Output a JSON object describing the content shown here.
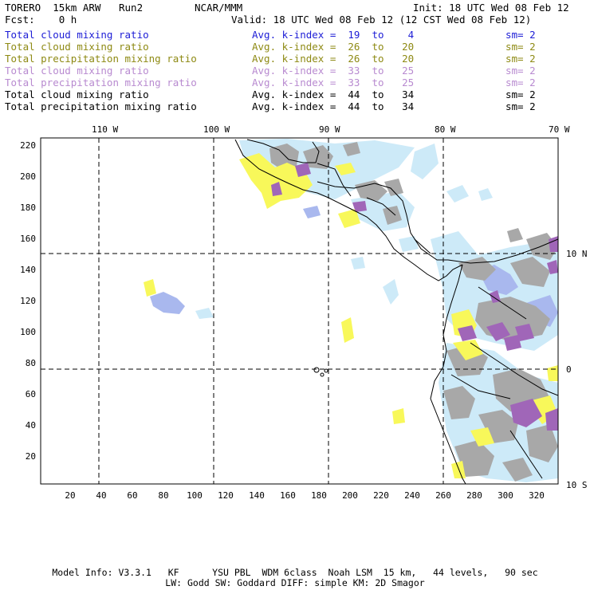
{
  "header": {
    "model": "TORERO  15km ARW   Run2",
    "org": "NCAR/MMM",
    "init": "Init: 18 UTC Wed 08 Feb 12",
    "fcst": "Fcst:    0 h",
    "valid": "Valid: 18 UTC Wed 08 Feb 12 (12 CST Wed 08 Feb 12)"
  },
  "legend": [
    {
      "name": "Total cloud mixing ratio",
      "index": "Avg. k-index =  19  to    4",
      "sm": "sm= 2",
      "color": "#1d1dd6"
    },
    {
      "name": "Total cloud mixing ratio",
      "index": "Avg. k-index =  26  to   20",
      "sm": "sm= 2",
      "color": "#8e8a14"
    },
    {
      "name": "Total precipitation mixing ratio",
      "index": "Avg. k-index =  26  to   20",
      "sm": "sm= 2",
      "color": "#8e8a14"
    },
    {
      "name": "Total cloud mixing ratio",
      "index": "Avg. k-index =  33  to   25",
      "sm": "sm= 2",
      "color": "#b88ad0"
    },
    {
      "name": "Total precipitation mixing ratio",
      "index": "Avg. k-index =  33  to   25",
      "sm": "sm= 2",
      "color": "#b88ad0"
    },
    {
      "name": "Total cloud mixing ratio",
      "index": "Avg. k-index =  44  to   34",
      "sm": "sm= 2",
      "color": "#000000"
    },
    {
      "name": "Total precipitation mixing ratio",
      "index": "Avg. k-index =  44  to   34",
      "sm": "sm= 2",
      "color": "#000000"
    }
  ],
  "map": {
    "lon_labels": [
      "110 W",
      "100 W",
      "90 W",
      "80 W",
      "70 W"
    ],
    "lat_labels": [
      "10 N",
      "0",
      "10 S"
    ],
    "y_ticks": [
      "20",
      "40",
      "60",
      "80",
      "100",
      "120",
      "140",
      "160",
      "180",
      "200",
      "220"
    ],
    "x_ticks": [
      "20",
      "40",
      "60",
      "80",
      "100",
      "120",
      "140",
      "160",
      "180",
      "200",
      "220",
      "240",
      "260",
      "280",
      "300",
      "320"
    ],
    "colors": {
      "light_blue": "#cdeaf8",
      "blue": "#a9b8ee",
      "yellow": "#f8f85a",
      "gray": "#a8a8a8",
      "purple": "#a066b8",
      "coast": "#000000"
    }
  },
  "footer": {
    "line1": "Model Info: V3.3.1   KF      YSU PBL  WDM 6class  Noah LSM  15 km,   44 levels,   90 sec",
    "line2": "LW: Godd SW: Goddard DIFF: simple KM: 2D Smagor"
  }
}
